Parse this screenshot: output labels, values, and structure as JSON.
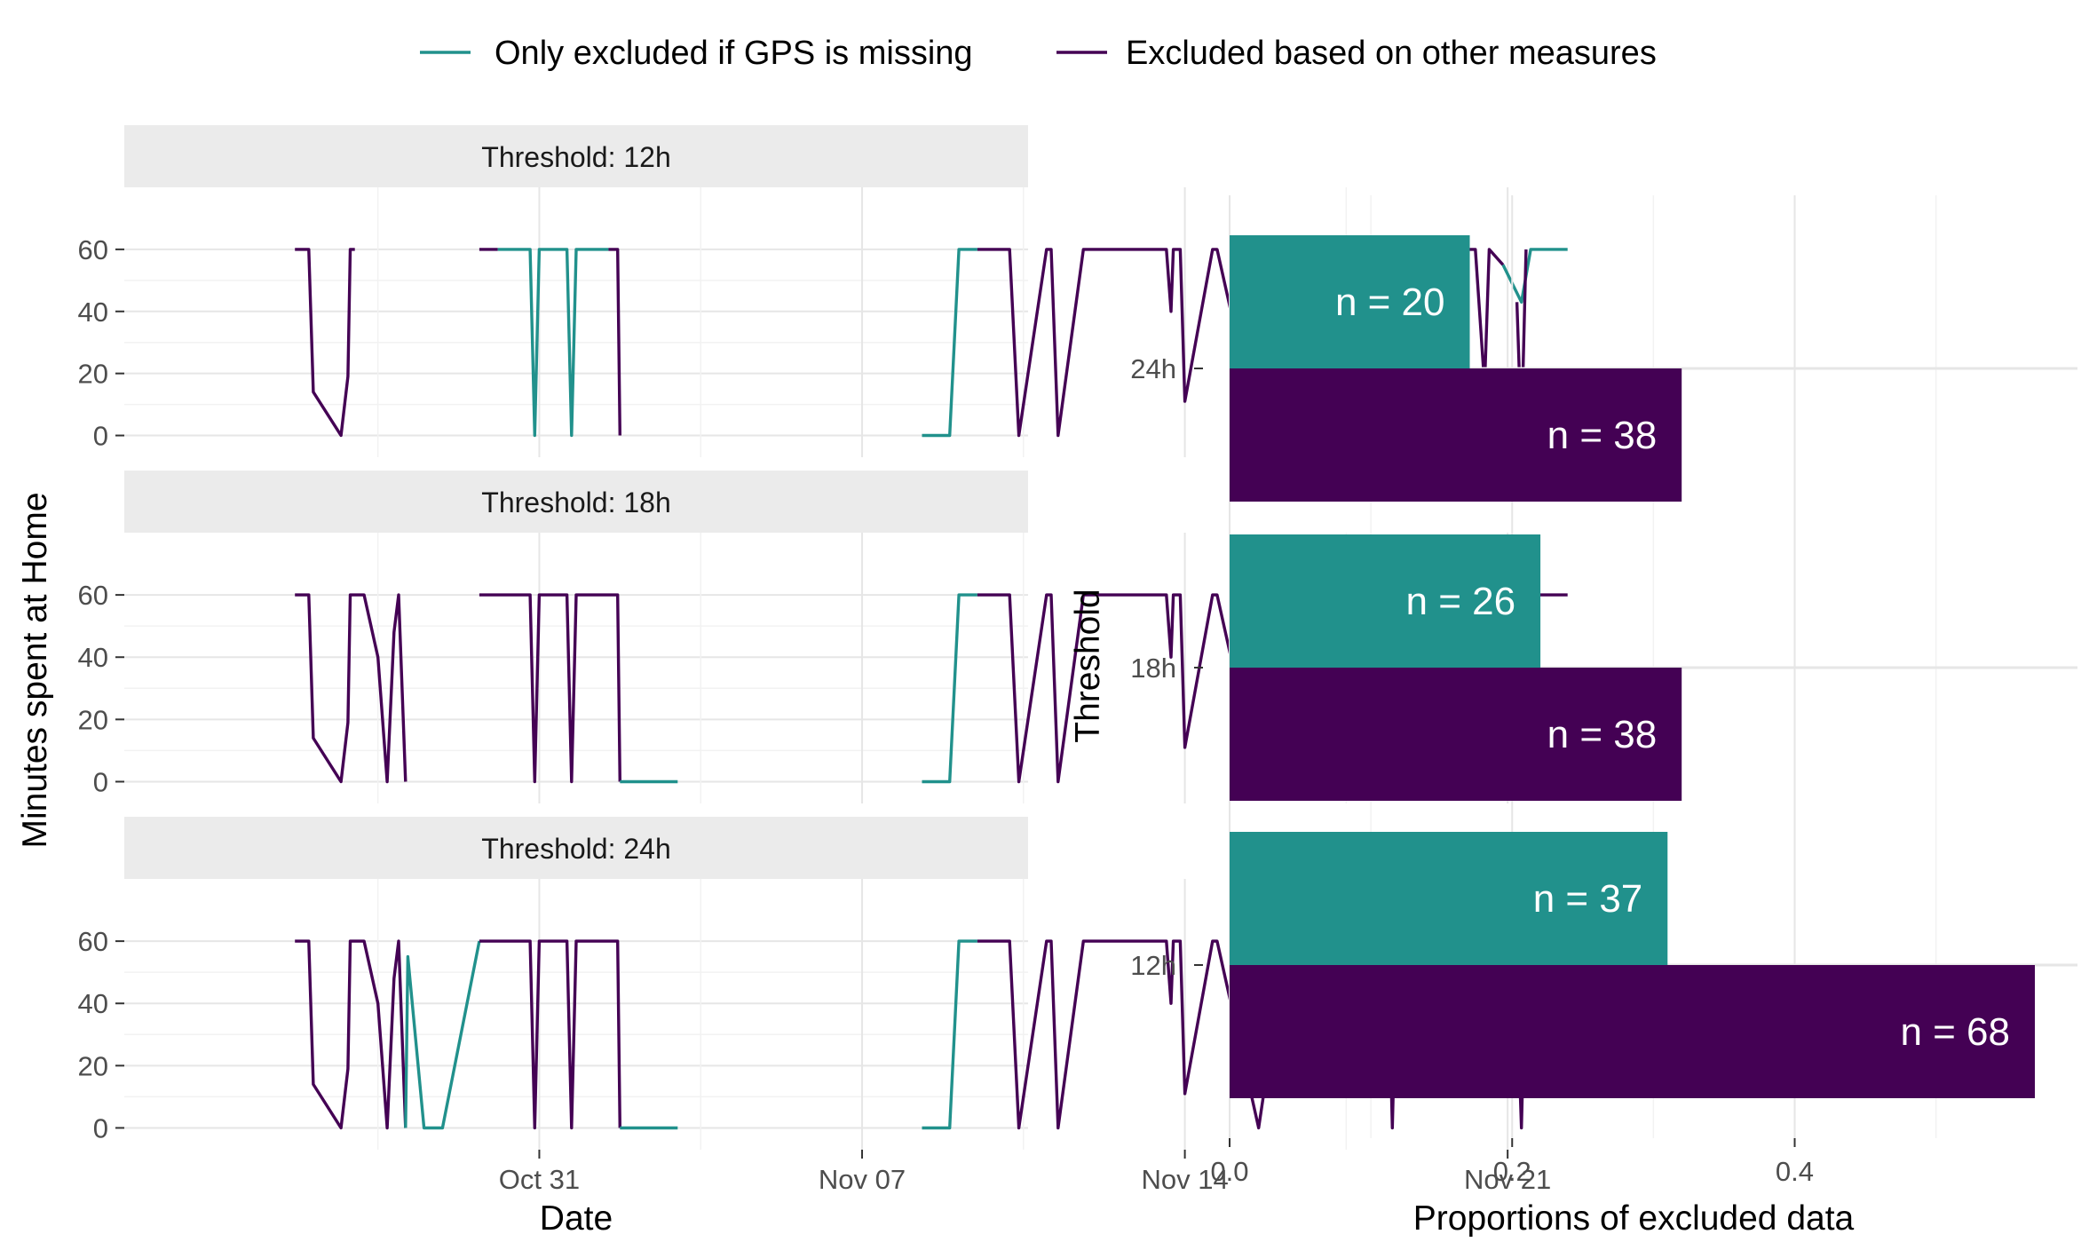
{
  "colors": {
    "teal": "#21918c",
    "purple": "#440154",
    "strip_bg": "#ebebeb",
    "grid": "#e6e6e6",
    "axis_text": "#4d4d4d"
  },
  "legend": {
    "items": [
      {
        "label": "Only excluded if GPS is missing",
        "color": "#21918c"
      },
      {
        "label": "Excluded based on other measures",
        "color": "#440154"
      }
    ]
  },
  "chart_data": [
    {
      "type": "line",
      "facets": [
        "Threshold: 12h",
        "Threshold: 18h",
        "Threshold: 24h"
      ],
      "xlabel": "Date",
      "ylabel": "Minutes spent at Home",
      "ylim": [
        -7,
        80
      ],
      "yticks": [
        0,
        20,
        40,
        60
      ],
      "x_units": "days (x = 0 is Oct 31)",
      "xlim": [
        -9.0,
        10.6
      ],
      "xticks": [
        {
          "label": "Oct 31",
          "date": "2023-10-31"
        },
        {
          "label": "Nov 07",
          "date": "2023-11-07"
        },
        {
          "label": "Nov 14",
          "date": "2023-11-14"
        },
        {
          "label": "Nov 21",
          "date": "2023-11-21"
        }
      ],
      "series_names": [
        "Only excluded if GPS is missing",
        "Excluded based on other measures"
      ],
      "panels": [
        {
          "title": "Threshold: 12h",
          "segments": [
            {
              "s": 1,
              "pts": [
                [
                  -5.3,
                  60
                ],
                [
                  -5.0,
                  60
                ],
                [
                  -4.9,
                  14
                ],
                [
                  -4.3,
                  0
                ],
                [
                  -4.15,
                  19
                ],
                [
                  -4.1,
                  60
                ],
                [
                  -4.0,
                  60
                ]
              ]
            },
            {
              "s": 1,
              "pts": [
                [
                  -1.3,
                  60
                ],
                [
                  -0.9,
                  60
                ]
              ]
            },
            {
              "s": 0,
              "pts": [
                [
                  -0.9,
                  60
                ],
                [
                  -0.2,
                  60
                ],
                [
                  -0.1,
                  0
                ],
                [
                  0,
                  60
                ],
                [
                  0.6,
                  60
                ],
                [
                  0.7,
                  0
                ],
                [
                  0.8,
                  60
                ],
                [
                  1.5,
                  60
                ]
              ]
            },
            {
              "s": 1,
              "pts": [
                [
                  1.5,
                  60
                ],
                [
                  1.7,
                  60
                ],
                [
                  1.75,
                  0
                ]
              ]
            },
            {
              "s": 0,
              "pts": [
                [
                  8.3,
                  0
                ],
                [
                  8.9,
                  0
                ],
                [
                  9.1,
                  60
                ],
                [
                  9.5,
                  60
                ]
              ]
            },
            {
              "s": 1,
              "pts": [
                [
                  9.5,
                  60
                ],
                [
                  10.2,
                  60
                ],
                [
                  10.4,
                  0
                ],
                [
                  11.0,
                  60
                ],
                [
                  11.1,
                  60
                ],
                [
                  11.25,
                  0
                ],
                [
                  11.8,
                  60
                ],
                [
                  12.1,
                  60
                ],
                [
                  13.6,
                  60
                ],
                [
                  13.7,
                  40
                ],
                [
                  13.75,
                  60
                ],
                [
                  13.9,
                  60
                ],
                [
                  14.0,
                  11
                ],
                [
                  14.6,
                  60
                ],
                [
                  14.7,
                  60
                ],
                [
                  15.6,
                  0
                ],
                [
                  16.2,
                  60
                ],
                [
                  17.3,
                  60
                ]
              ]
            },
            {
              "s": 0,
              "pts": [
                [
                  17.3,
                  60
                ],
                [
                  18.4,
                  60
                ],
                [
                  18.5,
                  0
                ],
                [
                  18.6,
                  60
                ],
                [
                  19.7,
                  60
                ],
                [
                  19.8,
                  50
                ],
                [
                  19.95,
                  43
                ],
                [
                  20.1,
                  60
                ]
              ]
            },
            {
              "s": 1,
              "pts": [
                [
                  20.1,
                  60
                ],
                [
                  20.3,
                  60
                ],
                [
                  20.5,
                  16
                ],
                [
                  20.6,
                  60
                ],
                [
                  20.9,
                  55
                ]
              ]
            },
            {
              "s": 0,
              "pts": [
                [
                  20.9,
                  55
                ],
                [
                  21.3,
                  43
                ],
                [
                  21.5,
                  60
                ],
                [
                  22.3,
                  60
                ]
              ]
            },
            {
              "s": 1,
              "pts": [
                [
                  21.2,
                  43
                ],
                [
                  21.3,
                  0
                ],
                [
                  21.4,
                  60
                ]
              ]
            }
          ]
        },
        {
          "title": "Threshold: 18h",
          "segments": [
            {
              "s": 1,
              "pts": [
                [
                  -5.3,
                  60
                ],
                [
                  -5.0,
                  60
                ],
                [
                  -4.9,
                  14
                ],
                [
                  -4.3,
                  0
                ],
                [
                  -4.15,
                  19
                ],
                [
                  -4.1,
                  60
                ],
                [
                  -3.8,
                  60
                ],
                [
                  -3.5,
                  40
                ],
                [
                  -3.3,
                  0
                ],
                [
                  -3.15,
                  48
                ],
                [
                  -3.05,
                  60
                ],
                [
                  -2.9,
                  0
                ]
              ]
            },
            {
              "s": 1,
              "pts": [
                [
                  -1.3,
                  60
                ],
                [
                  -0.2,
                  60
                ],
                [
                  -0.1,
                  0
                ],
                [
                  0,
                  60
                ],
                [
                  0.6,
                  60
                ],
                [
                  0.7,
                  0
                ],
                [
                  0.8,
                  60
                ],
                [
                  1.7,
                  60
                ],
                [
                  1.75,
                  0
                ]
              ]
            },
            {
              "s": 0,
              "pts": [
                [
                  1.75,
                  0
                ],
                [
                  3.0,
                  0
                ]
              ]
            },
            {
              "s": 0,
              "pts": [
                [
                  8.3,
                  0
                ],
                [
                  8.9,
                  0
                ],
                [
                  9.1,
                  60
                ],
                [
                  9.5,
                  60
                ]
              ]
            },
            {
              "s": 1,
              "pts": [
                [
                  9.5,
                  60
                ],
                [
                  10.2,
                  60
                ],
                [
                  10.4,
                  0
                ],
                [
                  11.0,
                  60
                ],
                [
                  11.1,
                  60
                ],
                [
                  11.25,
                  0
                ],
                [
                  11.8,
                  60
                ],
                [
                  12.1,
                  60
                ],
                [
                  13.6,
                  60
                ],
                [
                  13.7,
                  40
                ],
                [
                  13.75,
                  60
                ],
                [
                  13.9,
                  60
                ],
                [
                  14.0,
                  11
                ],
                [
                  14.6,
                  60
                ],
                [
                  14.7,
                  60
                ],
                [
                  15.6,
                  0
                ],
                [
                  16.2,
                  60
                ],
                [
                  18.4,
                  60
                ],
                [
                  18.5,
                  0
                ],
                [
                  18.6,
                  60
                ],
                [
                  19.7,
                  60
                ],
                [
                  19.95,
                  43
                ],
                [
                  20.1,
                  60
                ],
                [
                  20.3,
                  60
                ],
                [
                  20.5,
                  16
                ],
                [
                  20.6,
                  60
                ],
                [
                  21.2,
                  43
                ],
                [
                  21.3,
                  0
                ],
                [
                  21.4,
                  60
                ],
                [
                  22.3,
                  60
                ]
              ]
            }
          ]
        },
        {
          "title": "Threshold: 24h",
          "segments": [
            {
              "s": 1,
              "pts": [
                [
                  -5.3,
                  60
                ],
                [
                  -5.0,
                  60
                ],
                [
                  -4.9,
                  14
                ],
                [
                  -4.3,
                  0
                ],
                [
                  -4.15,
                  19
                ],
                [
                  -4.1,
                  60
                ],
                [
                  -3.8,
                  60
                ],
                [
                  -3.5,
                  40
                ],
                [
                  -3.3,
                  0
                ],
                [
                  -3.15,
                  48
                ],
                [
                  -3.05,
                  60
                ],
                [
                  -2.9,
                  0
                ]
              ]
            },
            {
              "s": 0,
              "pts": [
                [
                  -2.9,
                  0
                ],
                [
                  -2.85,
                  55
                ],
                [
                  -2.5,
                  0
                ],
                [
                  -2.1,
                  0
                ],
                [
                  -1.3,
                  60
                ]
              ]
            },
            {
              "s": 1,
              "pts": [
                [
                  -1.3,
                  60
                ],
                [
                  -0.2,
                  60
                ],
                [
                  -0.1,
                  0
                ],
                [
                  0,
                  60
                ],
                [
                  0.6,
                  60
                ],
                [
                  0.7,
                  0
                ],
                [
                  0.8,
                  60
                ],
                [
                  1.7,
                  60
                ],
                [
                  1.75,
                  0
                ]
              ]
            },
            {
              "s": 0,
              "pts": [
                [
                  1.75,
                  0
                ],
                [
                  3.0,
                  0
                ]
              ]
            },
            {
              "s": 0,
              "pts": [
                [
                  8.3,
                  0
                ],
                [
                  8.9,
                  0
                ],
                [
                  9.1,
                  60
                ],
                [
                  9.5,
                  60
                ]
              ]
            },
            {
              "s": 1,
              "pts": [
                [
                  9.5,
                  60
                ],
                [
                  10.2,
                  60
                ],
                [
                  10.4,
                  0
                ],
                [
                  11.0,
                  60
                ],
                [
                  11.1,
                  60
                ],
                [
                  11.25,
                  0
                ],
                [
                  11.8,
                  60
                ],
                [
                  12.1,
                  60
                ],
                [
                  13.6,
                  60
                ],
                [
                  13.7,
                  40
                ],
                [
                  13.75,
                  60
                ],
                [
                  13.9,
                  60
                ],
                [
                  14.0,
                  11
                ],
                [
                  14.6,
                  60
                ],
                [
                  14.7,
                  60
                ],
                [
                  15.6,
                  0
                ],
                [
                  16.2,
                  60
                ],
                [
                  18.4,
                  60
                ],
                [
                  18.5,
                  0
                ],
                [
                  18.6,
                  60
                ],
                [
                  19.7,
                  60
                ],
                [
                  19.95,
                  43
                ],
                [
                  20.1,
                  60
                ],
                [
                  20.3,
                  60
                ],
                [
                  20.5,
                  16
                ],
                [
                  20.6,
                  60
                ],
                [
                  21.2,
                  43
                ],
                [
                  21.3,
                  0
                ],
                [
                  21.4,
                  60
                ],
                [
                  22.3,
                  60
                ]
              ]
            }
          ]
        }
      ]
    },
    {
      "type": "bar",
      "orientation": "horizontal",
      "xlabel": "Proportions of excluded data",
      "ylabel": "Threshold",
      "xlim": [
        0,
        0.6
      ],
      "xticks": [
        0.0,
        0.2,
        0.4
      ],
      "xtick_labels": [
        "0.0",
        "0.2",
        "0.4"
      ],
      "categories": [
        "24h",
        "18h",
        "12h"
      ],
      "series": [
        {
          "name": "Only excluded if GPS is missing",
          "values": [
            0.17,
            0.22,
            0.31
          ],
          "labels": [
            "n = 20",
            "n = 26",
            "n = 37"
          ]
        },
        {
          "name": "Excluded based on other measures",
          "values": [
            0.32,
            0.32,
            0.57
          ],
          "labels": [
            "n = 38",
            "n = 38",
            "n = 68"
          ]
        }
      ]
    }
  ]
}
